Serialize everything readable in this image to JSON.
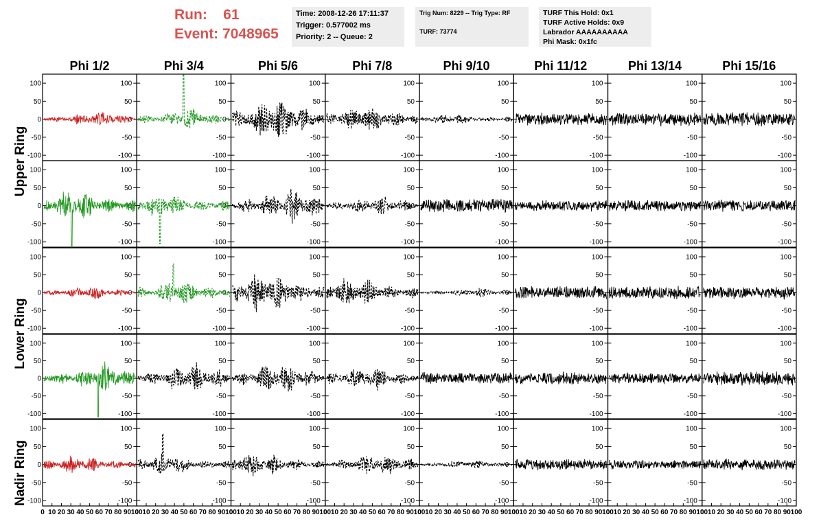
{
  "header": {
    "run_label": "Run:",
    "run_value": "61",
    "event_label": "Event:",
    "event_value": "7048965",
    "time": "Time: 2008-12-26 17:11:37",
    "trigger": "Trigger: 0.577002 ms",
    "priority": "Priority: 2 -- Queue: 2",
    "trig_num": "Trig Num: 8229 -- Trig Type: RF",
    "turf": "TURF: 73774",
    "turf_this_hold": "TURF This Hold: 0x1",
    "turf_active_holds": "TURF Active Holds: 0x9",
    "labrador": "Labrador AAAAAAAAAA",
    "phi_mask": "Phi Mask: 0x1fc"
  },
  "columns": [
    "Phi 1/2",
    "Phi 3/4",
    "Phi 5/6",
    "Phi 7/8",
    "Phi 9/10",
    "Phi 11/12",
    "Phi 13/14",
    "Phi 15/16"
  ],
  "ring_labels": {
    "upper": "Upper Ring",
    "lower": "Lower Ring",
    "nadir": "Nadir Ring"
  },
  "colors": {
    "accent": "#d9534f",
    "red_trace": "#cc2222",
    "green_trace": "#229922",
    "black_trace": "#000000",
    "infobox_bg": "#ededed"
  },
  "chart_data": {
    "type": "line",
    "ylim": [
      -115,
      125
    ],
    "y_ticks": [
      -100,
      -50,
      0,
      50,
      100
    ],
    "xlim": [
      0,
      100
    ],
    "x_tick_labels": [
      "0",
      "10",
      "20",
      "30",
      "40",
      "50",
      "60",
      "70",
      "80",
      "90",
      "100"
    ],
    "rows": [
      {
        "ring": "upper",
        "traces": [
          {
            "color": "red",
            "style": "solid",
            "amp": 25,
            "burst": 0.45,
            "seed": 11
          },
          {
            "color": "green",
            "style": "dashed",
            "amp": 35,
            "burst": 0.35,
            "seed": 12,
            "spike": 125
          },
          {
            "color": "black",
            "style": "dashed",
            "amp": 70,
            "burst": 0.5,
            "seed": 13
          },
          {
            "color": "black",
            "style": "dashed",
            "amp": 45,
            "burst": 0.5,
            "seed": 14
          },
          {
            "color": "black",
            "style": "dashed",
            "amp": 18,
            "burst": 0.4,
            "seed": 15
          },
          {
            "color": "black",
            "style": "solid",
            "amp": 20,
            "burst": 0,
            "seed": 16
          },
          {
            "color": "black",
            "style": "solid",
            "amp": 22,
            "burst": 0,
            "seed": 17
          },
          {
            "color": "black",
            "style": "solid",
            "amp": 22,
            "burst": 0,
            "seed": 18
          }
        ]
      },
      {
        "ring": "upper",
        "traces": [
          {
            "color": "green",
            "style": "solid",
            "amp": 60,
            "burst": 0.35,
            "seed": 21,
            "spike": -115
          },
          {
            "color": "green",
            "style": "dashed",
            "amp": 45,
            "burst": 0.35,
            "seed": 22,
            "spike": -105
          },
          {
            "color": "black",
            "style": "dashed",
            "amp": 55,
            "burst": 0.5,
            "seed": 23
          },
          {
            "color": "black",
            "style": "dashed",
            "amp": 30,
            "burst": 0.5,
            "seed": 24
          },
          {
            "color": "black",
            "style": "solid",
            "amp": 22,
            "burst": 0,
            "seed": 25
          },
          {
            "color": "black",
            "style": "solid",
            "amp": 18,
            "burst": 0,
            "seed": 26
          },
          {
            "color": "black",
            "style": "solid",
            "amp": 18,
            "burst": 0,
            "seed": 27
          },
          {
            "color": "black",
            "style": "solid",
            "amp": 20,
            "burst": 0,
            "seed": 28
          }
        ]
      },
      {
        "ring": "lower",
        "traces": [
          {
            "color": "red",
            "style": "solid",
            "amp": 22,
            "burst": 0.4,
            "seed": 31
          },
          {
            "color": "green",
            "style": "dashed",
            "amp": 45,
            "burst": 0.35,
            "seed": 32,
            "spike": 80
          },
          {
            "color": "black",
            "style": "dashed",
            "amp": 65,
            "burst": 0.5,
            "seed": 33
          },
          {
            "color": "black",
            "style": "dashed",
            "amp": 50,
            "burst": 0.5,
            "seed": 34
          },
          {
            "color": "black",
            "style": "dashed",
            "amp": 15,
            "burst": 0.4,
            "seed": 35
          },
          {
            "color": "black",
            "style": "solid",
            "amp": 22,
            "burst": 0,
            "seed": 36
          },
          {
            "color": "black",
            "style": "solid",
            "amp": 22,
            "burst": 0,
            "seed": 37
          },
          {
            "color": "black",
            "style": "solid",
            "amp": 20,
            "burst": 0,
            "seed": 38
          }
        ]
      },
      {
        "ring": "lower",
        "traces": [
          {
            "color": "green",
            "style": "solid",
            "amp": 55,
            "burst": 0.35,
            "seed": 41,
            "spike": -110
          },
          {
            "color": "black",
            "style": "dashed",
            "amp": 50,
            "burst": 0.5,
            "seed": 42
          },
          {
            "color": "black",
            "style": "dashed",
            "amp": 50,
            "burst": 0.5,
            "seed": 43
          },
          {
            "color": "black",
            "style": "dashed",
            "amp": 40,
            "burst": 0.5,
            "seed": 44
          },
          {
            "color": "black",
            "style": "solid",
            "amp": 20,
            "burst": 0,
            "seed": 45
          },
          {
            "color": "black",
            "style": "solid",
            "amp": 20,
            "burst": 0,
            "seed": 46
          },
          {
            "color": "black",
            "style": "solid",
            "amp": 18,
            "burst": 0,
            "seed": 47
          },
          {
            "color": "black",
            "style": "solid",
            "amp": 25,
            "burst": 0,
            "seed": 48
          }
        ]
      },
      {
        "ring": "nadir",
        "traces": [
          {
            "color": "red",
            "style": "solid",
            "amp": 30,
            "burst": 0.45,
            "seed": 51
          },
          {
            "color": "black",
            "style": "dashed",
            "amp": 35,
            "burst": 0.4,
            "seed": 52,
            "spike": 85
          },
          {
            "color": "black",
            "style": "dashed",
            "amp": 40,
            "burst": 0.5,
            "seed": 53
          },
          {
            "color": "black",
            "style": "dashed",
            "amp": 35,
            "burst": 0.5,
            "seed": 54
          },
          {
            "color": "black",
            "style": "dashed",
            "amp": 15,
            "burst": 0.4,
            "seed": 55
          },
          {
            "color": "black",
            "style": "solid",
            "amp": 18,
            "burst": 0,
            "seed": 56
          },
          {
            "color": "black",
            "style": "solid",
            "amp": 15,
            "burst": 0,
            "seed": 57
          },
          {
            "color": "black",
            "style": "solid",
            "amp": 18,
            "burst": 0,
            "seed": 58
          }
        ]
      }
    ]
  }
}
